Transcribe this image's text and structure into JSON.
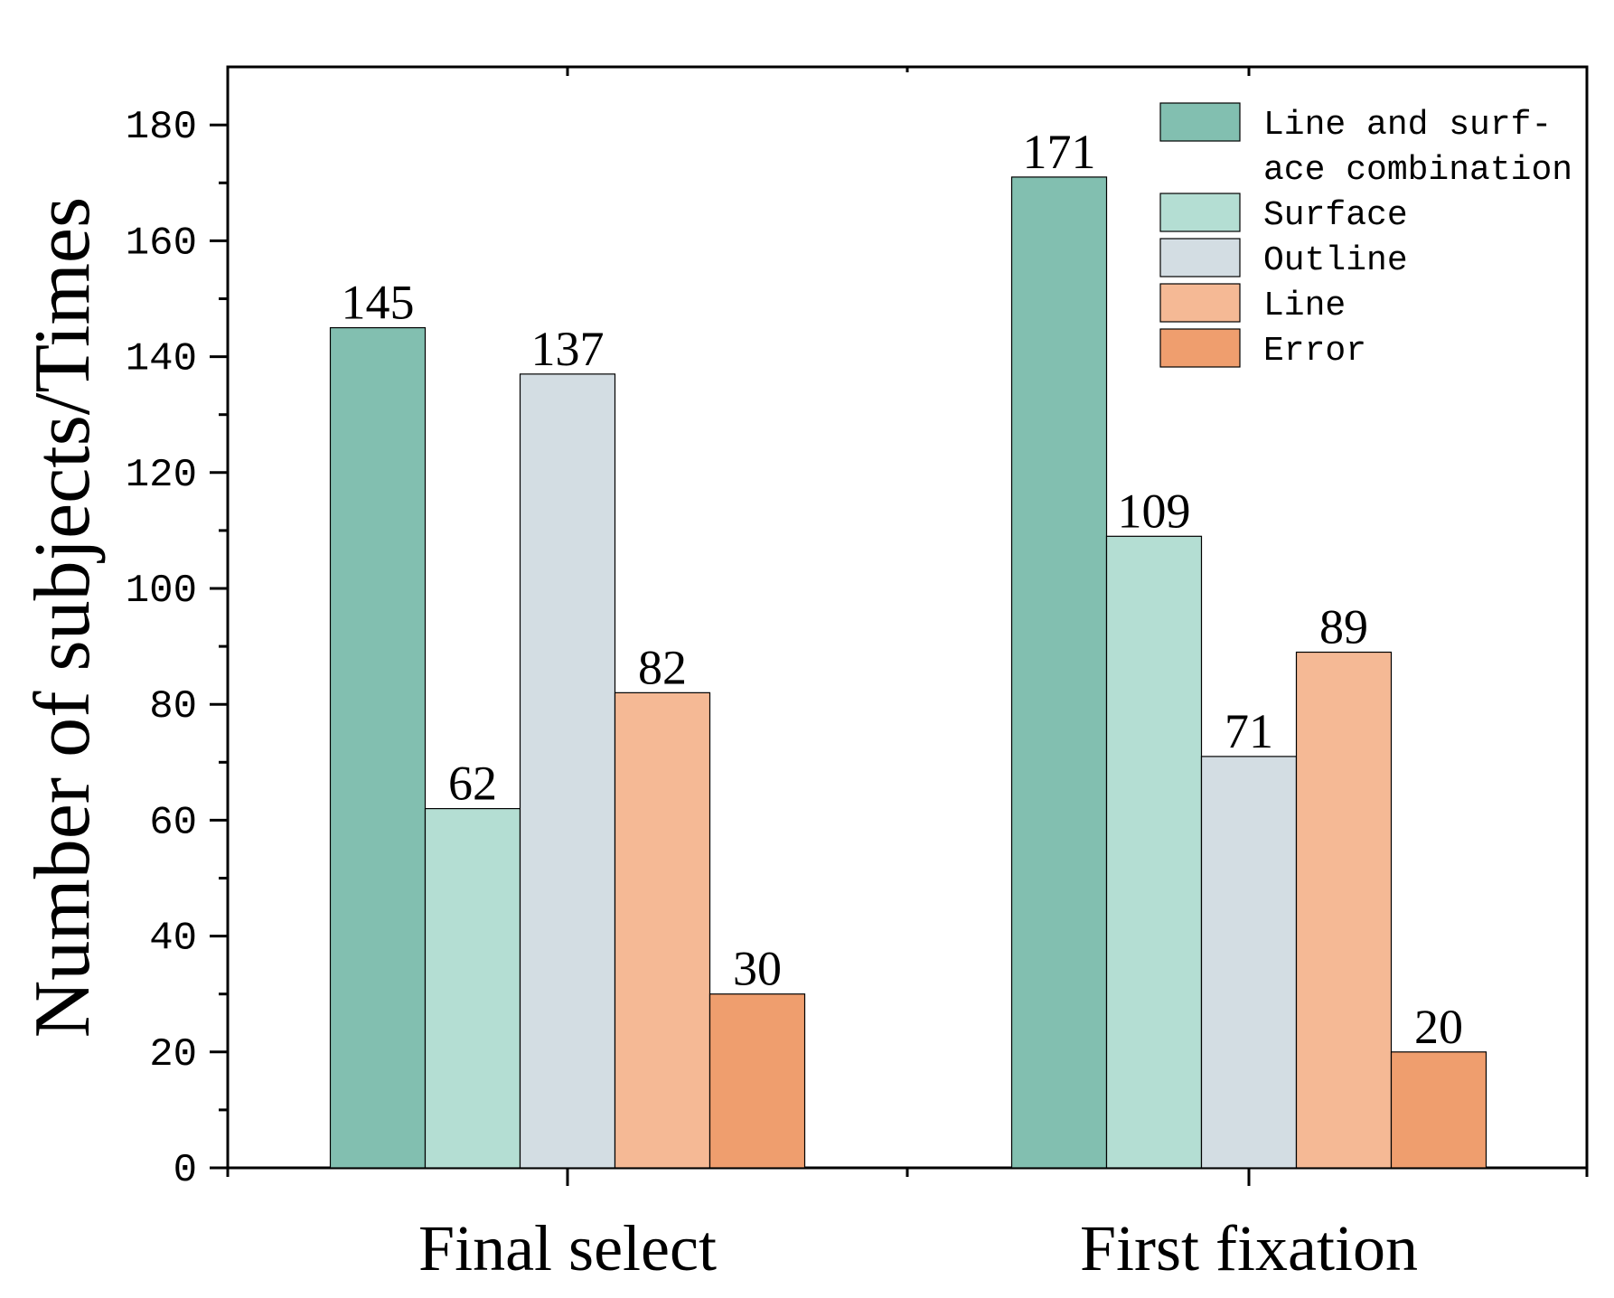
{
  "chart_data": {
    "type": "bar",
    "title": "",
    "xlabel": "",
    "ylabel": "Number of subjects/Times",
    "ylim": [
      0,
      190
    ],
    "yticks": [
      0,
      20,
      40,
      60,
      80,
      100,
      120,
      140,
      160,
      180
    ],
    "ytick_labels": [
      "0",
      "20",
      "40",
      "60",
      "80",
      "100",
      "120",
      "140",
      "160",
      "180"
    ],
    "categories": [
      "Final select",
      "First fixation"
    ],
    "series": [
      {
        "name": "Line and surface combination",
        "legend_lines": [
          "Line and surf-",
          "ace combination"
        ],
        "color": "#82bfb0",
        "values": [
          145,
          171
        ],
        "labels": [
          "145",
          "171"
        ]
      },
      {
        "name": "Surface",
        "legend_lines": [
          "Surface"
        ],
        "color": "#b4ded3",
        "values": [
          62,
          109
        ],
        "labels": [
          "62",
          "109"
        ]
      },
      {
        "name": "Outline",
        "legend_lines": [
          "Outline"
        ],
        "color": "#d3dde3",
        "values": [
          137,
          71
        ],
        "labels": [
          "137",
          "71"
        ]
      },
      {
        "name": "Line",
        "legend_lines": [
          "Line"
        ],
        "color": "#f5b995",
        "values": [
          82,
          89
        ],
        "labels": [
          "82",
          "89"
        ]
      },
      {
        "name": "Error",
        "legend_lines": [
          "Error"
        ],
        "color": "#ef9e6e",
        "values": [
          30,
          20
        ],
        "labels": [
          "30",
          "20"
        ]
      }
    ],
    "legend_position": "top-right",
    "grid": false
  }
}
